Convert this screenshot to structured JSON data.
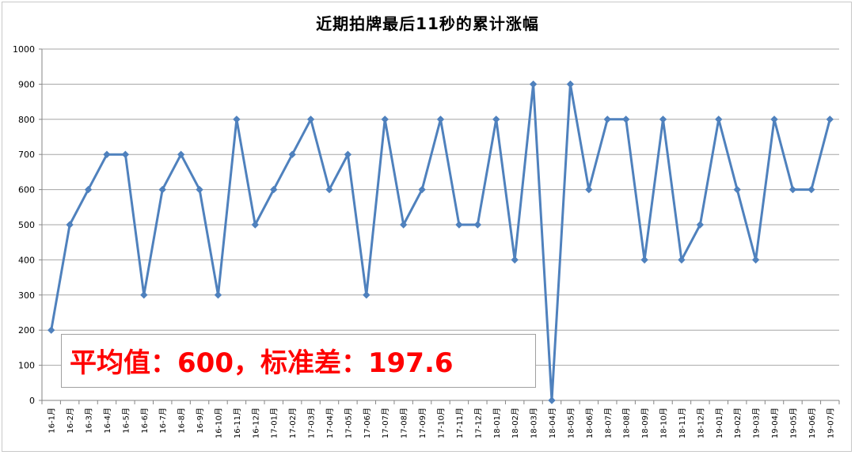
{
  "chart_data": {
    "type": "line",
    "title": "近期拍牌最后11秒的累计涨幅",
    "xlabel": "",
    "ylabel": "",
    "ylim": [
      0,
      1000
    ],
    "yticks": [
      0,
      100,
      200,
      300,
      400,
      500,
      600,
      700,
      800,
      900,
      1000
    ],
    "grid": true,
    "legend": "none",
    "categories": [
      "16-1月",
      "16-2月",
      "16-3月",
      "16-4月",
      "16-5月",
      "16-6月",
      "16-7月",
      "16-8月",
      "16-9月",
      "16-10月",
      "16-11月",
      "16-12月",
      "17-01月",
      "17-02月",
      "17-03月",
      "17-04月",
      "17-05月",
      "17-06月",
      "17-07月",
      "17-08月",
      "17-09月",
      "17-10月",
      "17-11月",
      "17-12月",
      "18-01月",
      "18-02月",
      "18-03月",
      "18-04月",
      "18-05月",
      "18-06月",
      "18-07月",
      "18-08月",
      "18-09月",
      "18-10月",
      "18-11月",
      "18-12月",
      "19-01月",
      "19-02月",
      "19-03月",
      "19-04月",
      "19-05月",
      "19-06月",
      "19-07月"
    ],
    "series": [
      {
        "values": [
          200,
          500,
          600,
          700,
          700,
          300,
          600,
          700,
          600,
          300,
          800,
          500,
          600,
          700,
          800,
          600,
          700,
          300,
          800,
          500,
          600,
          800,
          500,
          500,
          800,
          400,
          900,
          0,
          900,
          600,
          800,
          800,
          400,
          800,
          400,
          500,
          800,
          600,
          400,
          800,
          600,
          600,
          800
        ],
        "color": "#4f81bd"
      }
    ],
    "annotation": "平均值：600，标准差：197.6",
    "annotation_color": "#ff0000"
  }
}
